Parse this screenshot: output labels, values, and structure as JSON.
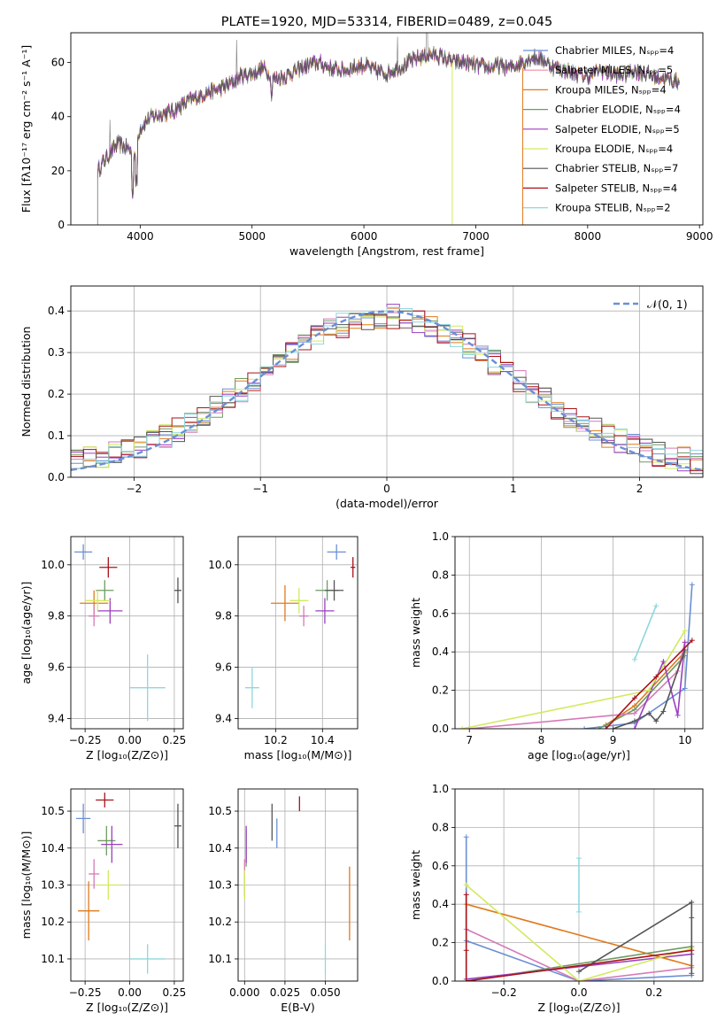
{
  "colors": [
    "#6a8fd6",
    "#e07a1e",
    "#6e9c62",
    "#d57ab8",
    "#9b3fbf",
    "#d2ea5e",
    "#555555",
    "#a8121a",
    "#8fd7dd"
  ],
  "legend_colors": [
    "#6a8fd6",
    "#f08aa4",
    "#e07a1e",
    "#6e9c62",
    "#9b3fbf",
    "#d2ea5e",
    "#555555",
    "#a8121a",
    "#8fd7dd"
  ],
  "chart_data": [
    {
      "id": "spectrum",
      "type": "line",
      "title": "PLATE=1920, MJD=53314, FIBERID=0489, z=0.045",
      "xlabel": "wavelength [Angstrom, rest frame]",
      "ylabel": "Flux [fλ10⁻¹⁷ erg cm⁻² s⁻¹ A⁻¹]",
      "xlim": [
        3380,
        9030
      ],
      "ylim": [
        0,
        71
      ],
      "xticks": [
        4000,
        5000,
        6000,
        7000,
        8000,
        9000
      ],
      "yticks": [
        0,
        20,
        40,
        60
      ],
      "legend": {
        "position": "top-right",
        "entries": [
          "Chabrier MILES, Nₛₚₚ=4",
          "Salpeter MILES, Nₛₚₚ=5",
          "Kroupa MILES, Nₛₚₚ=4",
          "Chabrier ELODIE, Nₛₚₚ=4",
          "Salpeter ELODIE, Nₛₚₚ=5",
          "Kroupa ELODIE, Nₛₚₚ=4",
          "Chabrier STELIB, Nₛₚₚ=7",
          "Salpeter STELIB, Nₛₚₚ=4",
          "Kroupa STELIB, Nₛₚₚ=2"
        ]
      },
      "data_spectrum": {
        "x": [
          3620,
          3700,
          3800,
          3900,
          3950,
          4000,
          4100,
          4200,
          4300,
          4400,
          4500,
          4600,
          4700,
          4800,
          4900,
          5000,
          5100,
          5200,
          5300,
          5400,
          5500,
          5600,
          5700,
          5800,
          5900,
          6000,
          6100,
          6200,
          6300,
          6400,
          6500,
          6600,
          6700,
          6800,
          6900,
          7000,
          7100,
          7200,
          7300,
          7400,
          7500,
          7600,
          7700,
          7800,
          7900,
          8000,
          8100,
          8200,
          8300,
          8400,
          8500,
          8600,
          8700,
          8800
        ],
        "y": [
          20,
          25,
          30,
          28,
          26,
          36,
          40,
          41,
          42,
          45,
          47,
          49,
          50,
          52,
          55,
          56,
          58,
          54,
          55,
          57,
          59,
          60,
          58,
          57,
          58,
          59,
          57,
          56,
          58,
          60,
          62,
          63,
          62,
          60,
          60,
          59,
          58,
          59,
          58,
          60,
          62,
          61,
          58,
          57,
          56,
          55,
          57,
          56,
          55,
          57,
          56,
          55,
          54,
          53
        ]
      }
    },
    {
      "id": "residuals",
      "type": "step",
      "xlabel": "(data-model)/error",
      "ylabel": "Normed distribution",
      "xlim": [
        -2.5,
        2.5
      ],
      "ylim": [
        0,
        0.46
      ],
      "xticks": [
        -2,
        -1,
        0,
        1,
        2
      ],
      "yticks": [
        0.0,
        0.1,
        0.2,
        0.3,
        0.4
      ],
      "legend": {
        "position": "top-right",
        "entries": [
          "𝒩(0, 1)"
        ]
      },
      "bin_width": 0.1
    },
    {
      "id": "age_vs_Z",
      "type": "errorbar",
      "xlabel": "Z [log₁₀(Z/Z⊙)]",
      "ylabel": "age  [log₁₀(age/yr)]",
      "xlim": [
        -0.33,
        0.3
      ],
      "ylim": [
        9.36,
        10.11
      ],
      "xticks": [
        -0.25,
        0.0,
        0.25
      ],
      "yticks": [
        9.4,
        9.6,
        9.8,
        10.0
      ],
      "points": [
        {
          "x": -0.26,
          "xe": 0.05,
          "y": 10.05,
          "ye": 0.03
        },
        {
          "x": -0.2,
          "xe": 0.08,
          "y": 9.85,
          "ye": 0.05
        },
        {
          "x": -0.14,
          "xe": 0.05,
          "y": 9.9,
          "ye": 0.04
        },
        {
          "x": -0.2,
          "xe": 0.03,
          "y": 9.8,
          "ye": 0.04
        },
        {
          "x": -0.11,
          "xe": 0.07,
          "y": 9.82,
          "ye": 0.05
        },
        {
          "x": -0.18,
          "xe": 0.07,
          "y": 9.86,
          "ye": 0.04
        },
        {
          "x": 0.27,
          "xe": 0.02,
          "y": 9.9,
          "ye": 0.05
        },
        {
          "x": -0.12,
          "xe": 0.05,
          "y": 9.99,
          "ye": 0.04
        },
        {
          "x": 0.1,
          "xe": 0.1,
          "y": 9.52,
          "ye": 0.13
        }
      ]
    },
    {
      "id": "age_vs_mass",
      "type": "errorbar",
      "xlabel": "mass [log₁₀(M/M⊙)]",
      "ylabel": "",
      "xlim": [
        10.04,
        10.55
      ],
      "ylim": [
        9.36,
        10.11
      ],
      "xticks": [
        10.2,
        10.4
      ],
      "yticks": [
        9.4,
        9.6,
        9.8,
        10.0
      ],
      "points": [
        {
          "x": 10.46,
          "xe": 0.04,
          "y": 10.05,
          "ye": 0.03
        },
        {
          "x": 10.24,
          "xe": 0.06,
          "y": 9.85,
          "ye": 0.07
        },
        {
          "x": 10.42,
          "xe": 0.05,
          "y": 9.9,
          "ye": 0.04
        },
        {
          "x": 10.32,
          "xe": 0.02,
          "y": 9.8,
          "ye": 0.04
        },
        {
          "x": 10.41,
          "xe": 0.04,
          "y": 9.82,
          "ye": 0.05
        },
        {
          "x": 10.3,
          "xe": 0.04,
          "y": 9.86,
          "ye": 0.05
        },
        {
          "x": 10.45,
          "xe": 0.04,
          "y": 9.9,
          "ye": 0.04
        },
        {
          "x": 10.53,
          "xe": 0.01,
          "y": 9.99,
          "ye": 0.04
        },
        {
          "x": 10.1,
          "xe": 0.03,
          "y": 9.52,
          "ye": 0.08
        }
      ]
    },
    {
      "id": "weight_vs_age",
      "type": "line",
      "xlabel": "age  [log₁₀(age/yr)]",
      "ylabel": "mass weight",
      "xlim": [
        6.8,
        10.25
      ],
      "ylim": [
        0,
        1.0
      ],
      "xticks": [
        7,
        8,
        9,
        10
      ],
      "yticks": [
        0.0,
        0.2,
        0.4,
        0.6,
        0.8,
        1.0
      ],
      "series": [
        {
          "x": [
            8.6,
            9.3,
            10.0,
            10.1
          ],
          "y": [
            0.0,
            0.03,
            0.21,
            0.75
          ]
        },
        {
          "x": [
            8.9,
            9.3,
            10.0
          ],
          "y": [
            0.02,
            0.12,
            0.4
          ]
        },
        {
          "x": [
            8.8,
            9.3,
            10.0
          ],
          "y": [
            0.0,
            0.1,
            0.38
          ]
        },
        {
          "x": [
            7.0,
            9.3,
            9.9,
            10.0
          ],
          "y": [
            0.0,
            0.08,
            0.3,
            0.45
          ]
        },
        {
          "x": [
            9.3,
            9.7,
            9.9,
            10.0
          ],
          "y": [
            0.0,
            0.35,
            0.07,
            0.45
          ]
        },
        {
          "x": [
            6.9,
            9.5,
            10.0
          ],
          "y": [
            0.0,
            0.2,
            0.51
          ]
        },
        {
          "x": [
            9.0,
            9.3,
            9.5,
            9.6,
            9.7,
            10.0
          ],
          "y": [
            0.0,
            0.04,
            0.08,
            0.04,
            0.09,
            0.41
          ]
        },
        {
          "x": [
            8.9,
            9.3,
            9.6,
            10.1
          ],
          "y": [
            0.0,
            0.16,
            0.27,
            0.46
          ]
        },
        {
          "x": [
            9.3,
            9.6
          ],
          "y": [
            0.36,
            0.64
          ]
        }
      ]
    },
    {
      "id": "mass_vs_Z",
      "type": "errorbar",
      "xlabel": "Z [log₁₀(Z/Z⊙)]",
      "ylabel": "mass [log₁₀(M/M⊙)]",
      "xlim": [
        -0.33,
        0.3
      ],
      "ylim": [
        10.04,
        10.56
      ],
      "xticks": [
        -0.25,
        0.0,
        0.25
      ],
      "yticks": [
        10.1,
        10.2,
        10.3,
        10.4,
        10.5
      ],
      "points": [
        {
          "x": -0.26,
          "xe": 0.04,
          "y": 10.48,
          "ye": 0.04
        },
        {
          "x": -0.23,
          "xe": 0.06,
          "y": 10.23,
          "ye": 0.08
        },
        {
          "x": -0.13,
          "xe": 0.05,
          "y": 10.42,
          "ye": 0.04
        },
        {
          "x": -0.2,
          "xe": 0.03,
          "y": 10.33,
          "ye": 0.04
        },
        {
          "x": -0.1,
          "xe": 0.06,
          "y": 10.41,
          "ye": 0.05
        },
        {
          "x": -0.12,
          "xe": 0.07,
          "y": 10.3,
          "ye": 0.04
        },
        {
          "x": 0.27,
          "xe": 0.02,
          "y": 10.46,
          "ye": 0.06
        },
        {
          "x": -0.14,
          "xe": 0.05,
          "y": 10.53,
          "ye": 0.02
        },
        {
          "x": 0.1,
          "xe": 0.1,
          "y": 10.1,
          "ye": 0.04
        }
      ]
    },
    {
      "id": "mass_vs_ebv",
      "type": "errorbar",
      "xlabel": "E(B-V)",
      "ylabel": "",
      "xlim": [
        -0.004,
        0.07
      ],
      "ylim": [
        10.04,
        10.56
      ],
      "xticks": [
        0.0,
        0.025,
        0.05
      ],
      "xtick_labels": [
        "0.000",
        "0.025",
        "0.050"
      ],
      "yticks": [
        10.1,
        10.2,
        10.3,
        10.4,
        10.5
      ],
      "points": [
        {
          "x": 0.02,
          "xe": 0,
          "y": 10.44,
          "ye": 0.04
        },
        {
          "x": 0.065,
          "xe": 0,
          "y": 10.25,
          "ye": 0.1
        },
        {
          "x": 0.001,
          "xe": 0,
          "y": 10.4,
          "ye": 0.05
        },
        {
          "x": 0.0,
          "xe": 0,
          "y": 10.32,
          "ye": 0.05
        },
        {
          "x": 0.001,
          "xe": 0,
          "y": 10.41,
          "ye": 0.05
        },
        {
          "x": 0.0,
          "xe": 0,
          "y": 10.3,
          "ye": 0.04
        },
        {
          "x": 0.017,
          "xe": 0,
          "y": 10.47,
          "ye": 0.05
        },
        {
          "x": 0.034,
          "xe": 0,
          "y": 10.52,
          "ye": 0.02
        },
        {
          "x": 0.05,
          "xe": 0,
          "y": 10.1,
          "ye": 0.04
        }
      ]
    },
    {
      "id": "weight_vs_Z",
      "type": "line",
      "xlabel": "Z [log₁₀(Z/Z⊙)]",
      "ylabel": "mass weight",
      "xlim": [
        -0.33,
        0.33
      ],
      "ylim": [
        0,
        1.0
      ],
      "xticks": [
        -0.2,
        0.0,
        0.2
      ],
      "yticks": [
        0.0,
        0.2,
        0.4,
        0.6,
        0.8,
        1.0
      ],
      "series": [
        {
          "x": [
            -0.3,
            -0.3,
            0.0,
            0.3
          ],
          "y": [
            0.75,
            0.21,
            0.0,
            0.03
          ]
        },
        {
          "x": [
            -0.3,
            0.3
          ],
          "y": [
            0.4,
            0.08
          ]
        },
        {
          "x": [
            -0.3,
            0.3
          ],
          "y": [
            0.0,
            0.18
          ]
        },
        {
          "x": [
            -0.3,
            0.0,
            0.3
          ],
          "y": [
            0.27,
            0.0,
            0.07
          ]
        },
        {
          "x": [
            -0.3,
            0.3
          ],
          "y": [
            0.01,
            0.14
          ]
        },
        {
          "x": [
            -0.3,
            0.0,
            0.3
          ],
          "y": [
            0.5,
            0.0,
            0.17
          ]
        },
        {
          "x": [
            0.0,
            0.3,
            0.3,
            0.3
          ],
          "y": [
            0.05,
            0.41,
            0.33,
            0.04
          ]
        },
        {
          "x": [
            -0.3,
            -0.3,
            -0.3,
            0.3
          ],
          "y": [
            0.45,
            0.16,
            0.0,
            0.16
          ]
        },
        {
          "x": [
            0.0,
            0.0
          ],
          "y": [
            0.64,
            0.36
          ]
        }
      ]
    }
  ]
}
